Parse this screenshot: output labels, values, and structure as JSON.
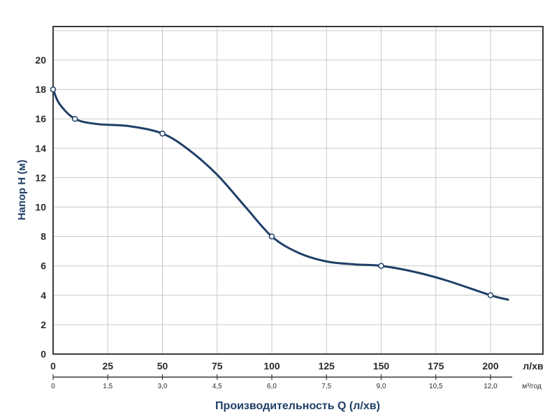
{
  "colors": {
    "curve": "#1f3f66",
    "axis_title": "#1f3f66",
    "grid": "#c8c8c8",
    "frame": "#3a3a3a",
    "marker_fill": "#ffffff"
  },
  "chart_data": {
    "type": "line",
    "title": "",
    "xlabel": "Производительность Q (л/хв)",
    "ylabel": "Напор H (м)",
    "x_unit": "л/хв",
    "x2_unit": "м³/год",
    "xlim": [
      0,
      225
    ],
    "ylim": [
      0,
      22
    ],
    "grid": true,
    "x_ticks": [
      "0",
      "25",
      "50",
      "75",
      "100",
      "125",
      "150",
      "175",
      "200"
    ],
    "x2_ticks": [
      "0",
      "1,5",
      "3,0",
      "4,5",
      "6,0",
      "7,5",
      "9,0",
      "10,5",
      "12,0"
    ],
    "y_ticks": [
      "0",
      "2",
      "4",
      "6",
      "8",
      "10",
      "12",
      "14",
      "16",
      "18",
      "20"
    ],
    "series": [
      {
        "curve": [
          [
            0,
            18
          ],
          [
            3,
            17
          ],
          [
            10,
            16
          ],
          [
            20,
            15.65
          ],
          [
            35,
            15.5
          ],
          [
            50,
            15
          ],
          [
            62,
            13.9
          ],
          [
            75,
            12.2
          ],
          [
            88,
            10
          ],
          [
            100,
            8
          ],
          [
            112,
            6.9
          ],
          [
            125,
            6.3
          ],
          [
            138,
            6.1
          ],
          [
            150,
            6
          ],
          [
            165,
            5.6
          ],
          [
            180,
            5
          ],
          [
            200,
            4
          ],
          [
            208,
            3.7
          ]
        ],
        "markers": [
          [
            0,
            18
          ],
          [
            10,
            16
          ],
          [
            50,
            15
          ],
          [
            100,
            8
          ],
          [
            150,
            6
          ],
          [
            200,
            4
          ]
        ]
      }
    ]
  }
}
